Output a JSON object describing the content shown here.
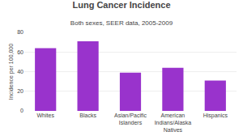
{
  "chart_data": {
    "type": "bar",
    "title": "Lung Cancer Incidence",
    "subtitle": "Both sexes, SEER data, 2005-2009",
    "ylabel": "Incidence per 100,000",
    "categories": [
      "Whites",
      "Blacks",
      "Asian/Pacific\nIslanders",
      "American\nIndians/Alaska\nNatives",
      "Hispanics"
    ],
    "values": [
      64,
      71,
      39,
      44,
      31
    ],
    "color": "#9933cc",
    "ylim": [
      0,
      80
    ],
    "yticks": [
      0,
      20,
      40,
      60,
      80
    ],
    "grid": true
  }
}
